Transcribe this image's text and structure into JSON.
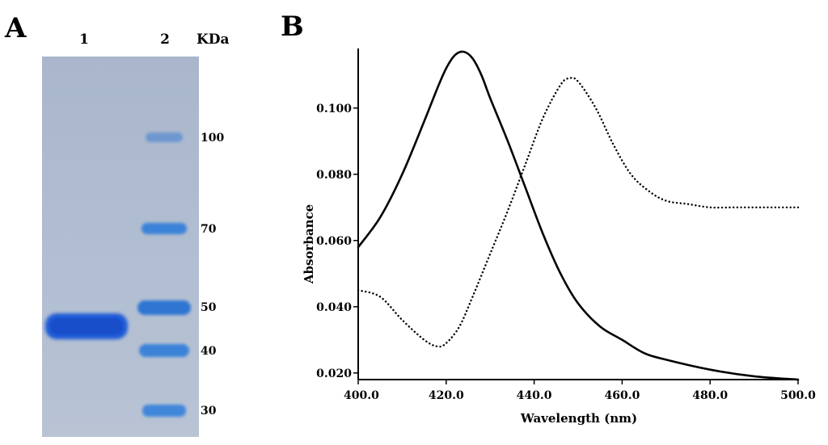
{
  "panels": {
    "a_label": "A",
    "b_label": "B"
  },
  "gel": {
    "lanes": [
      "1",
      "2"
    ],
    "unit_label": "KDa",
    "markers": [
      {
        "label": "100",
        "kda": 100
      },
      {
        "label": "70",
        "kda": 70
      },
      {
        "label": "50",
        "kda": 50
      },
      {
        "label": "40",
        "kda": 40
      },
      {
        "label": "30",
        "kda": 30
      }
    ],
    "sample_band": {
      "lane": "1",
      "approx_kda": 46
    },
    "colors": {
      "gel": "#aab8cf",
      "band": "#1f5ad6",
      "ladder": "#3a83d8"
    }
  },
  "chart_data": {
    "type": "line",
    "title": "",
    "xlabel": "Wavelength (nm)",
    "ylabel": "Absorbance",
    "xlim": [
      400,
      500
    ],
    "ylim": [
      0.018,
      0.118
    ],
    "xticks": [
      400,
      420,
      440,
      460,
      480,
      500
    ],
    "xtick_labels": [
      "400.0",
      "420.0",
      "440.0",
      "460.0",
      "480.0",
      "500.0"
    ],
    "yticks": [
      0.02,
      0.04,
      0.06,
      0.08,
      0.1
    ],
    "ytick_labels": [
      "0.020",
      "0.040",
      "0.060",
      "0.080",
      "0.100"
    ],
    "series": [
      {
        "name": "solid",
        "style": "solid",
        "x": [
          400,
          405,
          410,
          415,
          418,
          420,
          422,
          424,
          426,
          428,
          430,
          434,
          438,
          442,
          446,
          450,
          455,
          460,
          465,
          470,
          480,
          490,
          500
        ],
        "y": [
          0.058,
          0.067,
          0.08,
          0.096,
          0.106,
          0.112,
          0.116,
          0.117,
          0.115,
          0.11,
          0.103,
          0.09,
          0.076,
          0.062,
          0.05,
          0.041,
          0.034,
          0.03,
          0.026,
          0.024,
          0.021,
          0.019,
          0.018
        ]
      },
      {
        "name": "dotted",
        "style": "dotted",
        "x": [
          400,
          405,
          410,
          415,
          418,
          420,
          423,
          426,
          430,
          434,
          438,
          442,
          446,
          448,
          450,
          454,
          458,
          462,
          466,
          470,
          475,
          480,
          485,
          490,
          495,
          500
        ],
        "y": [
          0.045,
          0.043,
          0.036,
          0.03,
          0.028,
          0.029,
          0.034,
          0.043,
          0.056,
          0.069,
          0.083,
          0.097,
          0.107,
          0.109,
          0.108,
          0.1,
          0.089,
          0.08,
          0.075,
          0.072,
          0.071,
          0.07,
          0.07,
          0.07,
          0.07,
          0.07
        ]
      }
    ],
    "grid": false,
    "legend": "none"
  }
}
